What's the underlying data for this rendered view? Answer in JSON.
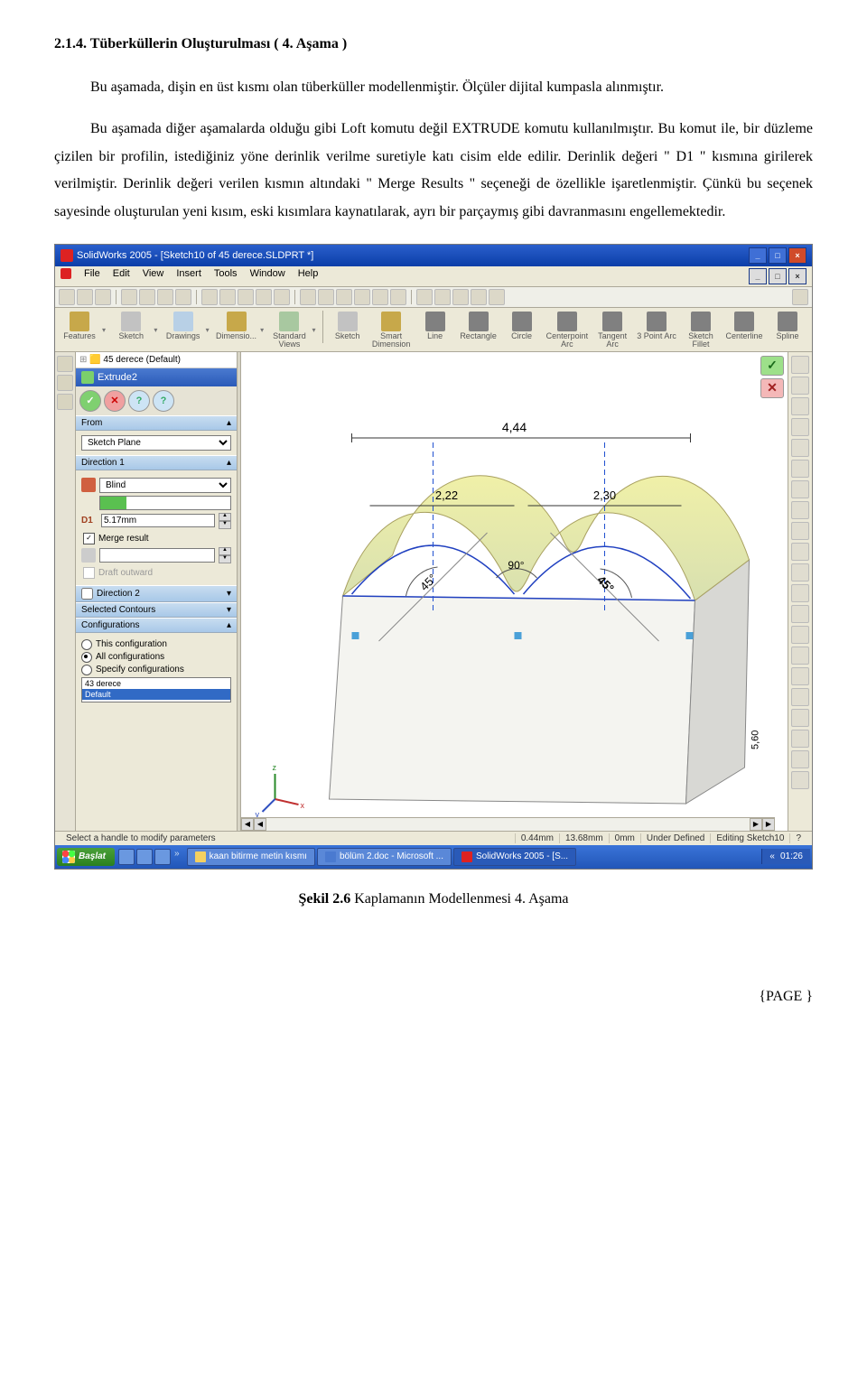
{
  "heading": "2.1.4. Tüberküllerin Oluşturulması ( 4. Aşama )",
  "para1": "Bu aşamada, dişin en üst kısmı olan tüberküller modellenmiştir. Ölçüler dijital kumpasla alınmıştır.",
  "para2": "Bu aşamada diğer aşamalarda olduğu gibi Loft komutu değil EXTRUDE komutu kullanılmıştır. Bu komut ile, bir düzleme çizilen bir profilin, istediğiniz yöne derinlik verilme suretiyle katı cisim elde edilir. Derinlik değeri \" D1 \" kısmına girilerek verilmiştir. Derinlik değeri verilen kısmın altındaki \" Merge Results \" seçeneği de özellikle işaretlenmiştir. Çünkü bu seçenek sayesinde oluşturulan yeni kısım, eski kısımlara kaynatılarak, ayrı bir parçaymış gibi davranmasını engellemektedir.",
  "caption_bold": "Şekil 2.6",
  "caption_rest": " Kaplamanın Modellenmesi 4. Aşama",
  "pagenum": "{PAGE  }",
  "app": {
    "title": "SolidWorks 2005 - [Sketch10 of 45 derece.SLDPRT *]",
    "menus": [
      "File",
      "Edit",
      "View",
      "Insert",
      "Tools",
      "Window",
      "Help"
    ],
    "bigtools": [
      {
        "label": "Features",
        "color": "#c7a84a"
      },
      {
        "label": "Sketch",
        "color": "#c2c2c2"
      },
      {
        "label": "Drawings",
        "color": "#b8d0e6"
      },
      {
        "label": "Dimensio...",
        "color": "#c7a84a"
      },
      {
        "label": "Standard\nViews",
        "color": "#a8c8a0"
      },
      {
        "label": "Sketch",
        "color": "#c2c2c2"
      },
      {
        "label": "Smart\nDimension",
        "color": "#c7a84a"
      },
      {
        "label": "Line",
        "color": "#808080"
      },
      {
        "label": "Rectangle",
        "color": "#808080"
      },
      {
        "label": "Circle",
        "color": "#808080"
      },
      {
        "label": "Centerpoint\nArc",
        "color": "#808080"
      },
      {
        "label": "Tangent\nArc",
        "color": "#808080"
      },
      {
        "label": "3 Point Arc",
        "color": "#808080"
      },
      {
        "label": "Sketch\nFillet",
        "color": "#808080"
      },
      {
        "label": "Centerline",
        "color": "#808080"
      },
      {
        "label": "Spline",
        "color": "#808080"
      }
    ],
    "tree_root": "45 derece (Default)",
    "pm": {
      "title": "Extrude2",
      "from_label": "From",
      "from_value": "Sketch Plane",
      "dir1_label": "Direction 1",
      "dir1_type": "Blind",
      "d1_label": "D1",
      "d1_value": "5.17mm",
      "merge_label": "Merge result",
      "merge_checked": true,
      "draft_label": "Draft outward",
      "draft_checked": false,
      "dir2_label": "Direction 2",
      "selcon_label": "Selected Contours",
      "config_label": "Configurations",
      "cfg_this": "This configuration",
      "cfg_all": "All configurations",
      "cfg_spec": "Specify configurations",
      "cfg_list": [
        "43 derece",
        "Default"
      ]
    },
    "dims": {
      "d_top": "4,44",
      "d_l": "2,22",
      "d_r": "2,30",
      "a_mid": "90°",
      "a_l": "45°",
      "a_r": "45°",
      "d_side": "5,60"
    },
    "statusbar": {
      "msg": "Select a handle to modify parameters",
      "v1": "0.44mm",
      "v2": "13.68mm",
      "v3": "0mm",
      "v4": "Under Defined",
      "v5": "Editing Sketch10"
    },
    "taskbar": {
      "start": "Başlat",
      "items": [
        "kaan bitirme metin kısmı",
        "bölüm 2.doc - Microsoft ...",
        "SolidWorks 2005 - [S..."
      ],
      "clock": "01:26"
    }
  }
}
